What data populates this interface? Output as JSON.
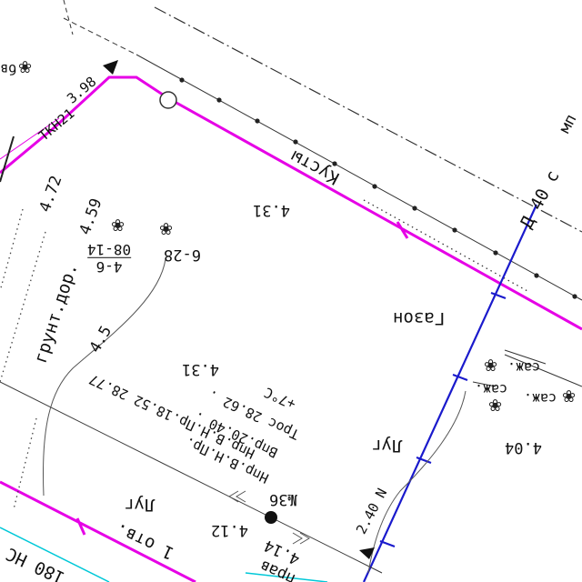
{
  "labels": {
    "bushes": "Кусты",
    "lawn": "Газон",
    "lug_1": "Луг",
    "lug_2": "Луг",
    "ground_road": "грунт.дор.",
    "otv": "1 отв.",
    "saj_1": "саж.",
    "saj_2": "саж.",
    "saj_3": "саж.",
    "elev_431_top": "4.31",
    "elev_431_mid": "4.31",
    "elev_404": "4.04",
    "elev_45": "4.5",
    "elev_459": "4.59",
    "elev_472": "4.72",
    "elev_412": "4.12",
    "elev_414": "4.14",
    "point_628": "6-28",
    "point_36": "№36",
    "tkn": "ТКН21",
    "tkn_elev": "3.98",
    "road_ns": "180 НС",
    "cable_40": "Д 40 с",
    "cable_402": "2.40 N",
    "mn": "мп",
    "fence_frag": "бв",
    "prava": "прав"
  },
  "fraction": {
    "numerator": "4-6",
    "denominator": "08-14"
  },
  "well_notes": {
    "line1": "+7°С",
    "line2": "Трос 28.62 .",
    "line3": "Впр.20.40 .",
    "line4": "Нпр.В.Н.Пр.18.52 28.77",
    "line5": "Нпр.В.Н.Пр."
  },
  "colors": {
    "magenta_line": "#e600e6",
    "blue_line": "#1a1acc",
    "cyan_line": "#00c8d8",
    "black_line": "#222222",
    "gray_line": "#555555"
  },
  "icons": {
    "tree": "flower-icon",
    "well": "filled-circle-icon",
    "hydrant": "open-circle-icon",
    "arrow": "triangle-arrow-icon"
  }
}
